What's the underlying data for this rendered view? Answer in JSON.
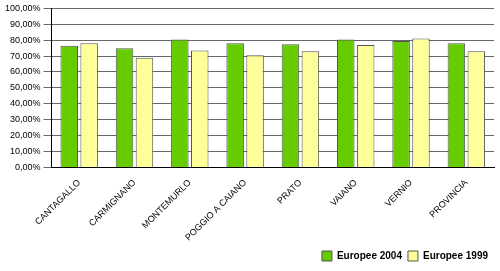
{
  "chart_data": {
    "type": "bar",
    "categories": [
      "CANTAGALLO",
      "CARMIGNANO",
      "MONTEMURLO",
      "POGGIO A CAIANO",
      "PRATO",
      "VAIANO",
      "VERNIO",
      "PROVINCIA"
    ],
    "series": [
      {
        "name": "Europee 2004",
        "color": "#66cc00",
        "values": [
          76.5,
          75,
          80.5,
          78,
          77.5,
          80.5,
          79.5,
          78
        ]
      },
      {
        "name": "Europee 1999",
        "color": "#ffff99",
        "values": [
          78,
          69,
          73.5,
          70.5,
          73,
          77,
          81,
          73
        ]
      }
    ],
    "ylim": [
      0,
      100
    ],
    "yticks": [
      {
        "value": 0,
        "label": "0,00%"
      },
      {
        "value": 10,
        "label": "10,00%"
      },
      {
        "value": 20,
        "label": "20,00%"
      },
      {
        "value": 30,
        "label": "30,00%"
      },
      {
        "value": 40,
        "label": "40,00%"
      },
      {
        "value": 50,
        "label": "50,00%"
      },
      {
        "value": 60,
        "label": "60,00%"
      },
      {
        "value": 70,
        "label": "70,00%"
      },
      {
        "value": 80,
        "label": "80,00%"
      },
      {
        "value": 90,
        "label": "90,00%"
      },
      {
        "value": 100,
        "label": "100,00%"
      }
    ],
    "grid": true,
    "legend": "bottom-right"
  }
}
